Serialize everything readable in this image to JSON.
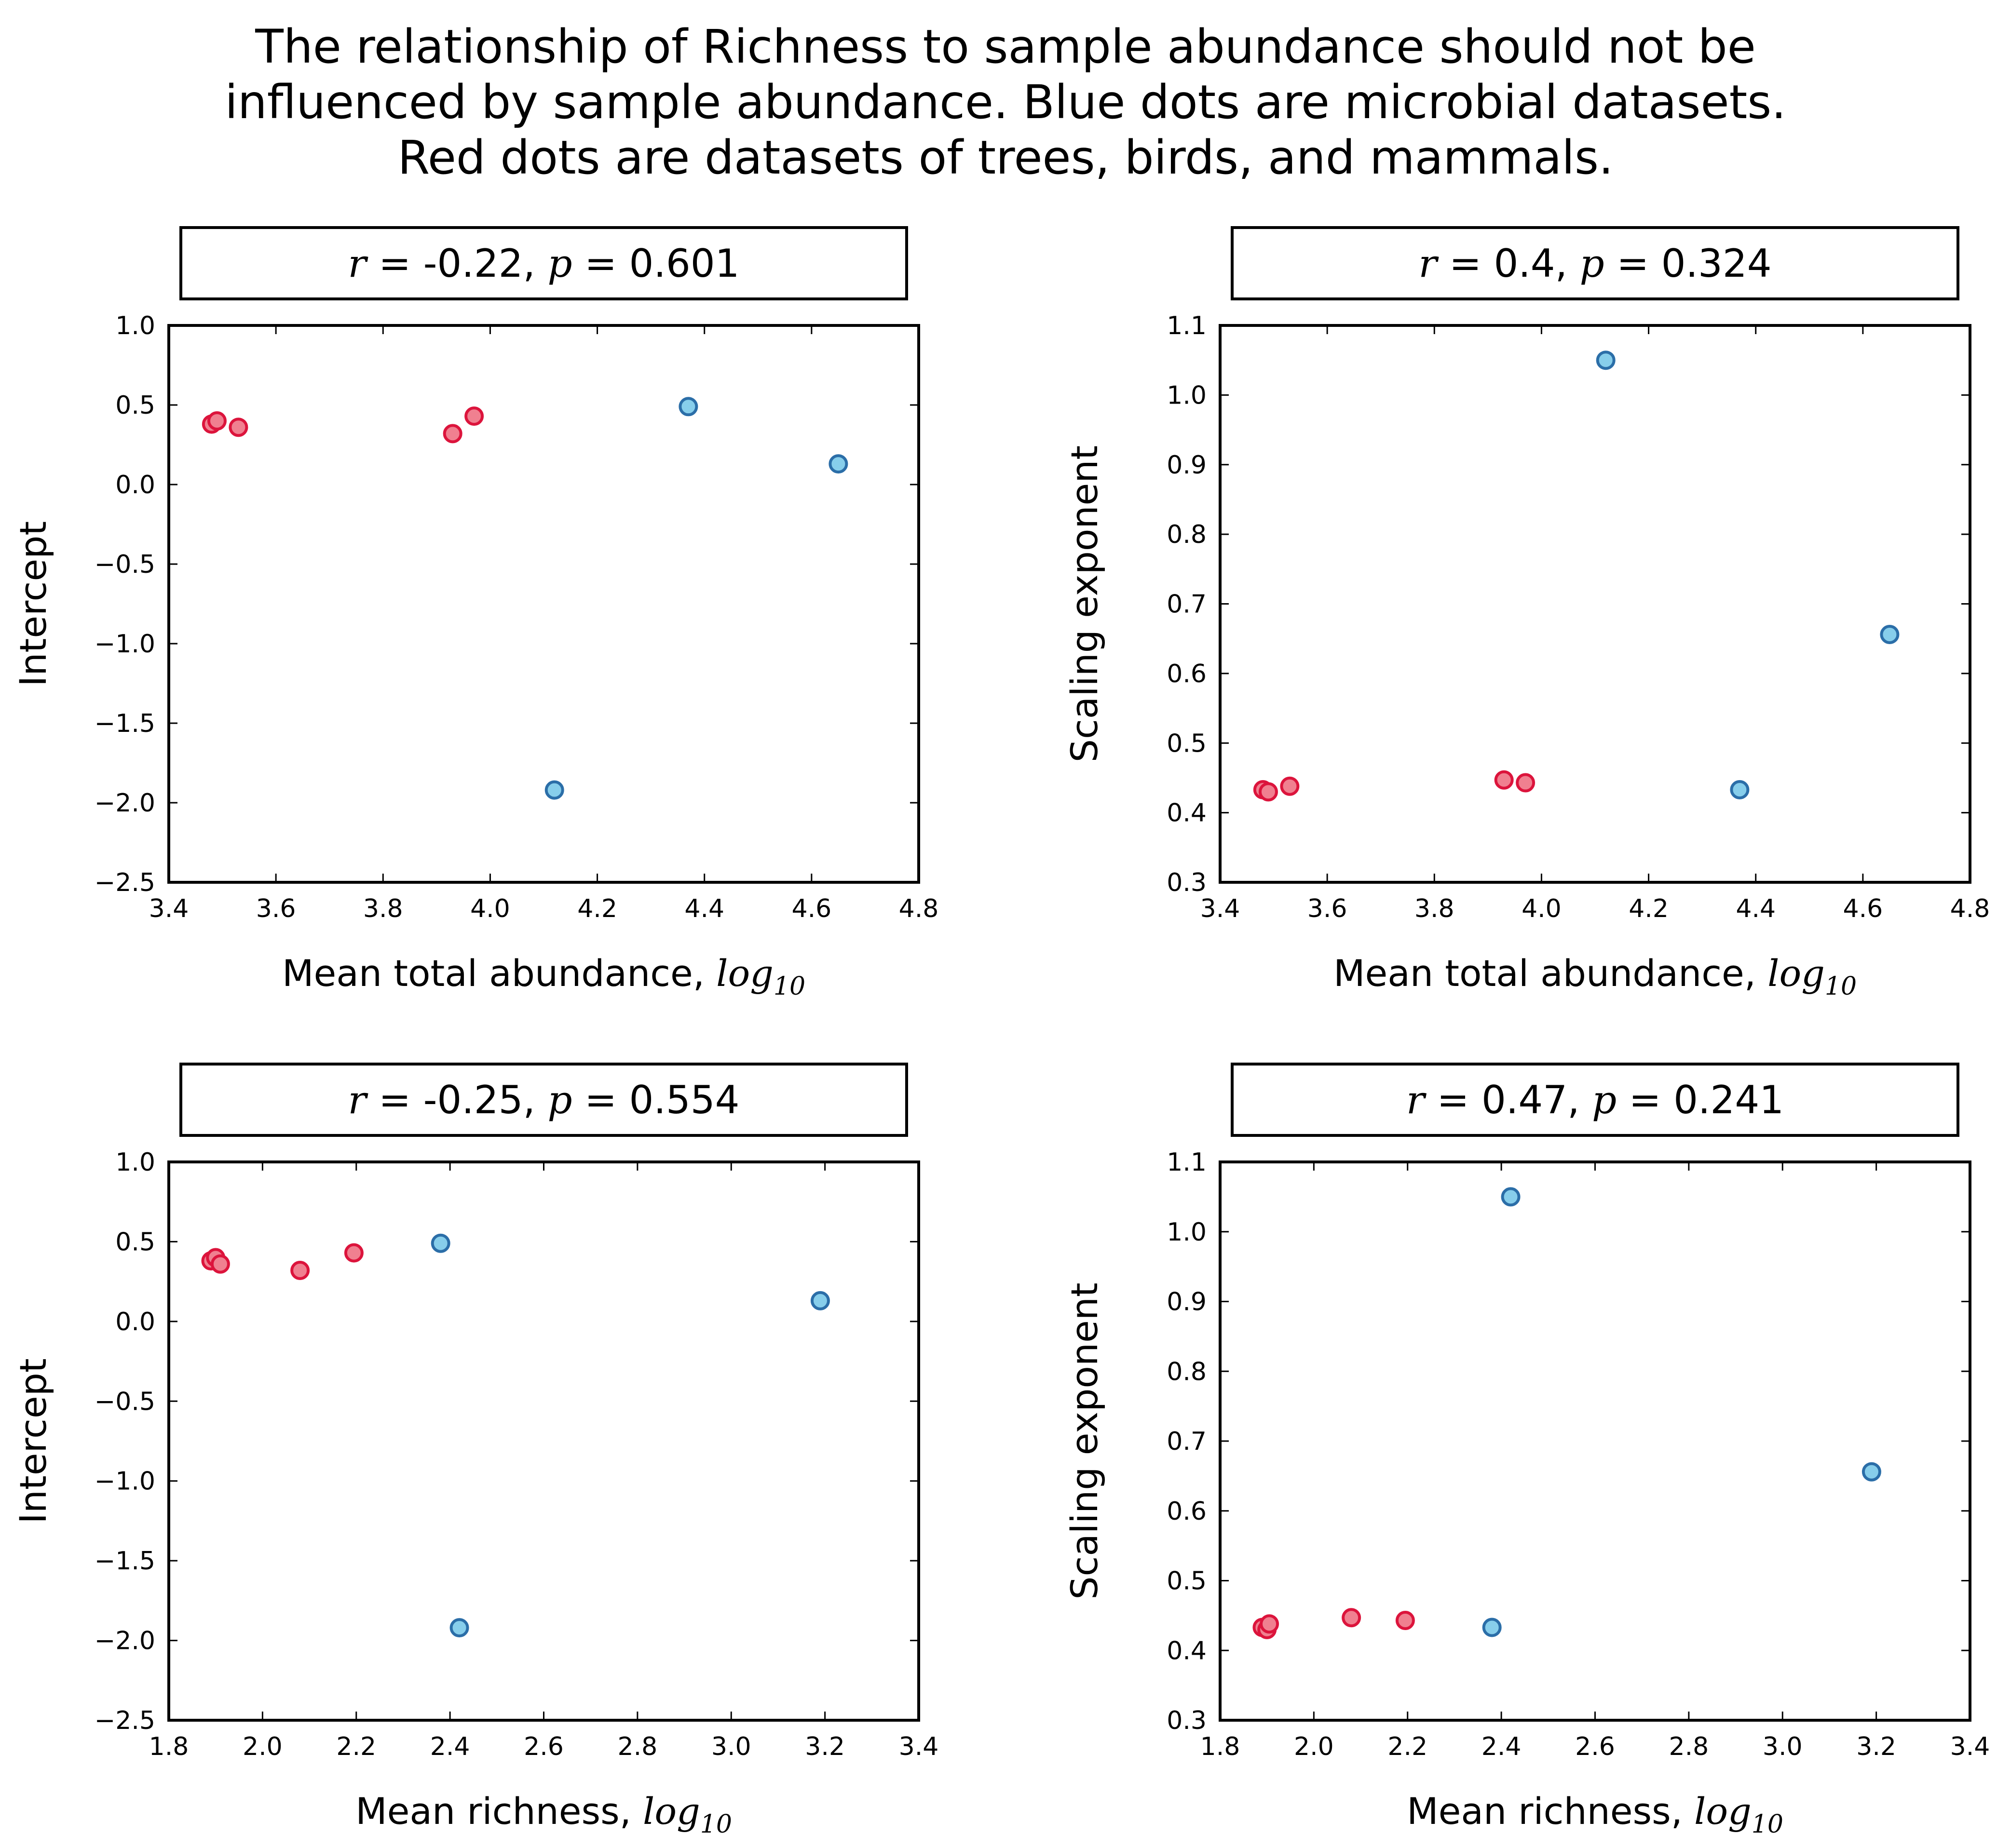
{
  "suptitle": [
    "The relationship of Richness to sample abundance should not be",
    "influenced by sample abundance. Blue dots are microbial datasets.",
    "Red dots are datasets of trees, birds, and mammals."
  ],
  "colors": {
    "microbial_fill": "#87ceeb",
    "microbial_edge": "#2b6ea8",
    "macro_fill": "#f08090",
    "macro_edge": "#dc143c",
    "axes": "#000000"
  },
  "chart_data": [
    {
      "type": "scatter",
      "stats": {
        "r": "-0.22",
        "p": "0.601"
      },
      "xlabel": "Mean total abundance,",
      "xlabel_math": {
        "base": "log",
        "sub": "10"
      },
      "ylabel": "Intercept",
      "xlim": [
        3.4,
        4.8
      ],
      "ylim": [
        -2.5,
        1.0
      ],
      "xticks": [
        "3.4",
        "3.6",
        "3.8",
        "4.0",
        "4.2",
        "4.4",
        "4.6",
        "4.8"
      ],
      "yticks": [
        "1.0",
        "0.5",
        "0.0",
        "−0.5",
        "−1.0",
        "−1.5",
        "−2.0",
        "−2.5"
      ],
      "series": [
        {
          "points": [
            [
              3.48,
              0.38
            ],
            [
              3.49,
              0.4
            ],
            [
              3.53,
              0.36
            ],
            [
              3.93,
              0.32
            ],
            [
              3.97,
              0.43
            ]
          ]
        },
        {
          "points": [
            [
              4.12,
              -1.92
            ],
            [
              4.37,
              0.49
            ],
            [
              4.65,
              0.13
            ]
          ]
        }
      ]
    },
    {
      "type": "scatter",
      "stats": {
        "r": "0.4",
        "p": "0.324"
      },
      "xlabel": "Mean total abundance,",
      "xlabel_math": {
        "base": "log",
        "sub": "10"
      },
      "ylabel": "Scaling exponent",
      "xlim": [
        3.4,
        4.8
      ],
      "ylim": [
        0.3,
        1.1
      ],
      "xticks": [
        "3.4",
        "3.6",
        "3.8",
        "4.0",
        "4.2",
        "4.4",
        "4.6",
        "4.8"
      ],
      "yticks": [
        "1.1",
        "1.0",
        "0.9",
        "0.8",
        "0.7",
        "0.6",
        "0.5",
        "0.4",
        "0.3"
      ],
      "series": [
        {
          "points": [
            [
              3.48,
              0.433
            ],
            [
              3.49,
              0.43
            ],
            [
              3.53,
              0.438
            ],
            [
              3.93,
              0.447
            ],
            [
              3.97,
              0.443
            ]
          ]
        },
        {
          "points": [
            [
              4.12,
              1.05
            ],
            [
              4.37,
              0.433
            ],
            [
              4.65,
              0.656
            ]
          ]
        }
      ]
    },
    {
      "type": "scatter",
      "stats": {
        "r": "-0.25",
        "p": "0.554"
      },
      "xlabel": "Mean richness,",
      "xlabel_math": {
        "base": "log",
        "sub": "10"
      },
      "ylabel": "Intercept",
      "xlim": [
        1.8,
        3.4
      ],
      "ylim": [
        -2.5,
        1.0
      ],
      "xticks": [
        "1.8",
        "2.0",
        "2.2",
        "2.4",
        "2.6",
        "2.8",
        "3.0",
        "3.2",
        "3.4"
      ],
      "yticks": [
        "1.0",
        "0.5",
        "0.0",
        "−0.5",
        "−1.0",
        "−1.5",
        "−2.0",
        "−2.5"
      ],
      "series": [
        {
          "points": [
            [
              1.89,
              0.38
            ],
            [
              1.9,
              0.4
            ],
            [
              1.91,
              0.36
            ],
            [
              2.08,
              0.32
            ],
            [
              2.195,
              0.43
            ]
          ]
        },
        {
          "points": [
            [
              2.38,
              0.49
            ],
            [
              2.42,
              -1.92
            ],
            [
              3.19,
              0.13
            ]
          ]
        }
      ]
    },
    {
      "type": "scatter",
      "stats": {
        "r": "0.47",
        "p": "0.241"
      },
      "xlabel": "Mean richness,",
      "xlabel_math": {
        "base": "log",
        "sub": "10"
      },
      "ylabel": "Scaling exponent",
      "xlim": [
        1.8,
        3.4
      ],
      "ylim": [
        0.3,
        1.1
      ],
      "xticks": [
        "1.8",
        "2.0",
        "2.2",
        "2.4",
        "2.6",
        "2.8",
        "3.0",
        "3.2",
        "3.4"
      ],
      "yticks": [
        "1.1",
        "1.0",
        "0.9",
        "0.8",
        "0.7",
        "0.6",
        "0.5",
        "0.4",
        "0.3"
      ],
      "series": [
        {
          "points": [
            [
              1.89,
              0.433
            ],
            [
              1.9,
              0.43
            ],
            [
              1.905,
              0.438
            ],
            [
              2.08,
              0.447
            ],
            [
              2.195,
              0.443
            ]
          ]
        },
        {
          "points": [
            [
              2.38,
              0.433
            ],
            [
              2.42,
              1.05
            ],
            [
              3.19,
              0.656
            ]
          ]
        }
      ]
    }
  ]
}
